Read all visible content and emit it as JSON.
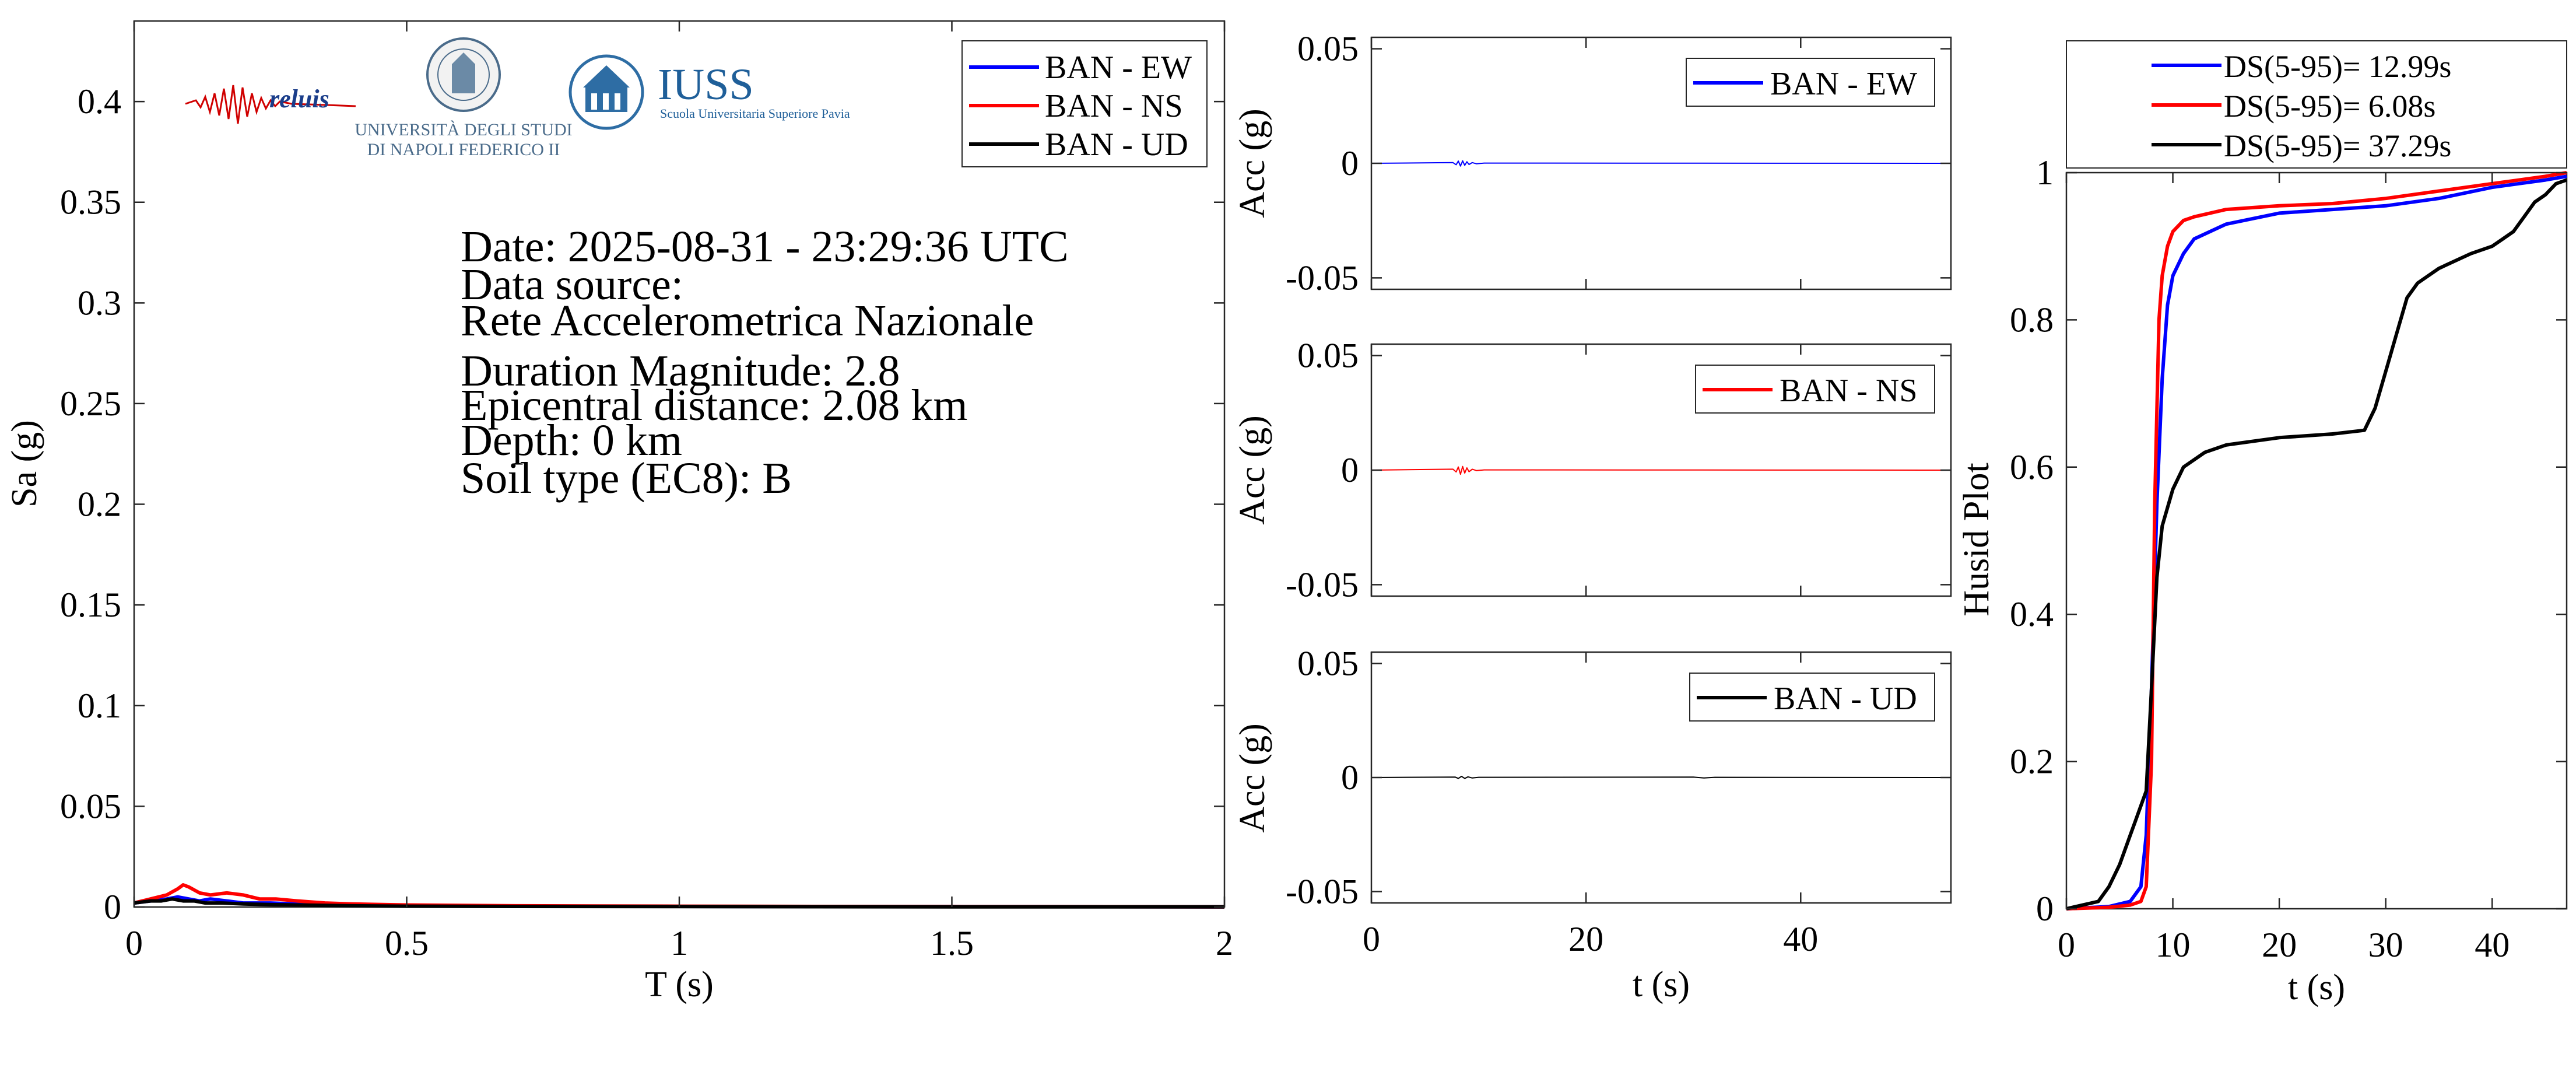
{
  "colors": {
    "ew": "#0000ff",
    "ns": "#ff0000",
    "ud": "#000000",
    "axis": "#262626"
  },
  "logos": {
    "reluis": "reluis",
    "unina_line1": "UNIVERSITÀ DEGLI STUDI",
    "unina_line2": "DI NAPOLI FEDERICO II",
    "iuss": "IUSS",
    "iuss_sub": "Scuola Universitaria Superiore Pavia",
    "unina_icon": "university-seal-icon",
    "iuss_icon": "iuss-building-icon"
  },
  "info": {
    "date": "Date: 2025-08-31 - 23:29:36 UTC",
    "source_label": "Data source:",
    "source": "Rete Accelerometrica Nazionale",
    "magnitude": "Duration Magnitude: 2.8",
    "distance": "Epicentral distance: 2.08 km",
    "depth": "Depth: 0 km",
    "soil": "Soil type (EC8): B"
  },
  "chart_data": [
    {
      "type": "line",
      "id": "spectra",
      "xlabel": "T (s)",
      "ylabel": "Sa (g)",
      "xlim": [
        0,
        2
      ],
      "ylim": [
        0,
        0.44
      ],
      "xticks": [
        0,
        0.5,
        1,
        1.5,
        2
      ],
      "xtick_labels": [
        "0",
        "0.5",
        "1",
        "1.5",
        "2"
      ],
      "yticks": [
        0,
        0.05,
        0.1,
        0.15,
        0.2,
        0.25,
        0.3,
        0.35,
        0.4
      ],
      "ytick_labels": [
        "0",
        "0.05",
        "0.1",
        "0.15",
        "0.2",
        "0.25",
        "0.3",
        "0.35",
        "0.4"
      ],
      "legend": "top-right",
      "series": [
        {
          "name": "BAN - EW",
          "color": "#0000ff",
          "x": [
            0,
            0.03,
            0.06,
            0.08,
            0.1,
            0.12,
            0.14,
            0.17,
            0.2,
            0.25,
            0.3,
            0.4,
            0.5,
            0.7,
            1.0,
            1.5,
            2.0
          ],
          "y": [
            0.002,
            0.003,
            0.004,
            0.005,
            0.004,
            0.003,
            0.004,
            0.003,
            0.002,
            0.002,
            0.0015,
            0.001,
            0.0008,
            0.0005,
            0.0003,
            0.0002,
            0.0001
          ]
        },
        {
          "name": "BAN - NS",
          "color": "#ff0000",
          "x": [
            0,
            0.03,
            0.06,
            0.08,
            0.09,
            0.1,
            0.12,
            0.14,
            0.17,
            0.2,
            0.23,
            0.26,
            0.3,
            0.35,
            0.4,
            0.5,
            0.7,
            1.0,
            1.5,
            2.0
          ],
          "y": [
            0.002,
            0.004,
            0.006,
            0.009,
            0.011,
            0.01,
            0.007,
            0.006,
            0.007,
            0.006,
            0.004,
            0.004,
            0.003,
            0.002,
            0.0015,
            0.001,
            0.0006,
            0.0004,
            0.0002,
            0.0001
          ]
        },
        {
          "name": "BAN - UD",
          "color": "#000000",
          "x": [
            0,
            0.03,
            0.05,
            0.07,
            0.09,
            0.11,
            0.13,
            0.16,
            0.2,
            0.25,
            0.3,
            0.4,
            0.5,
            0.7,
            1.0,
            1.5,
            2.0
          ],
          "y": [
            0.002,
            0.003,
            0.003,
            0.004,
            0.003,
            0.003,
            0.002,
            0.002,
            0.0015,
            0.0012,
            0.001,
            0.0006,
            0.0004,
            0.0003,
            0.0002,
            0.0001,
            0.0001
          ]
        }
      ]
    },
    {
      "type": "line",
      "id": "acc_ew",
      "xlabel": "",
      "ylabel": "Acc (g)",
      "xlim": [
        0,
        54
      ],
      "ylim": [
        -0.055,
        0.055
      ],
      "xticks": [
        0,
        20,
        40
      ],
      "yticks": [
        -0.05,
        0,
        0.05
      ],
      "ytick_labels": [
        "-0.05",
        "0",
        "0.05"
      ],
      "legend": "top-right",
      "series": [
        {
          "name": "BAN - EW",
          "color": "#0000ff",
          "x": [
            0,
            7.6,
            7.9,
            8.1,
            8.3,
            8.5,
            8.7,
            8.9,
            9.1,
            9.4,
            9.8,
            10.5,
            54
          ],
          "y": [
            0,
            0.0003,
            -0.0006,
            0.001,
            -0.0012,
            0.0011,
            -0.0009,
            0.0007,
            -0.0005,
            0.0003,
            -0.0002,
            0.0001,
            0
          ]
        }
      ]
    },
    {
      "type": "line",
      "id": "acc_ns",
      "xlabel": "",
      "ylabel": "Acc (g)",
      "xlim": [
        0,
        54
      ],
      "ylim": [
        -0.055,
        0.055
      ],
      "xticks": [
        0,
        20,
        40
      ],
      "yticks": [
        -0.05,
        0,
        0.05
      ],
      "ytick_labels": [
        "-0.05",
        "0",
        "0.05"
      ],
      "legend": "top-right",
      "series": [
        {
          "name": "BAN - NS",
          "color": "#ff0000",
          "x": [
            0,
            7.6,
            7.9,
            8.1,
            8.3,
            8.5,
            8.7,
            8.9,
            9.1,
            9.4,
            9.8,
            10.5,
            54
          ],
          "y": [
            0,
            0.0004,
            -0.0008,
            0.0014,
            -0.0018,
            0.0016,
            -0.0013,
            0.001,
            -0.0007,
            0.0004,
            -0.0002,
            0.0001,
            0
          ]
        }
      ]
    },
    {
      "type": "line",
      "id": "acc_ud",
      "xlabel": "t (s)",
      "ylabel": "Acc (g)",
      "xlim": [
        0,
        54
      ],
      "ylim": [
        -0.055,
        0.055
      ],
      "xticks": [
        0,
        20,
        40
      ],
      "xtick_labels": [
        "0",
        "20",
        "40"
      ],
      "yticks": [
        -0.05,
        0,
        0.05
      ],
      "ytick_labels": [
        "-0.05",
        "0",
        "0.05"
      ],
      "legend": "top-right",
      "series": [
        {
          "name": "BAN - UD",
          "color": "#000000",
          "x": [
            0,
            7.8,
            8.1,
            8.4,
            8.7,
            9.0,
            9.4,
            10.0,
            30.0,
            31.0,
            32.0,
            54
          ],
          "y": [
            0,
            0.0002,
            -0.0004,
            0.0005,
            -0.0004,
            0.0003,
            -0.0002,
            0.0001,
            0.0002,
            -0.0002,
            0.0001,
            0
          ]
        }
      ]
    },
    {
      "type": "line",
      "id": "husid",
      "xlabel": "t (s)",
      "ylabel": "Husid Plot",
      "xlim": [
        0,
        47
      ],
      "ylim": [
        0,
        1
      ],
      "xticks": [
        0,
        10,
        20,
        30,
        40
      ],
      "xtick_labels": [
        "0",
        "10",
        "20",
        "30",
        "40"
      ],
      "yticks": [
        0,
        0.2,
        0.4,
        0.6,
        0.8,
        1
      ],
      "ytick_labels": [
        "0",
        "0.2",
        "0.4",
        "0.6",
        "0.8",
        "1"
      ],
      "legend": "above",
      "series": [
        {
          "name": "DS(5-95)= 12.99s",
          "color": "#0000ff",
          "x": [
            0,
            4,
            6,
            7,
            7.5,
            8,
            8.5,
            9,
            9.5,
            10,
            11,
            12,
            15,
            20,
            25,
            30,
            35,
            40,
            45,
            47
          ],
          "y": [
            0,
            0.003,
            0.01,
            0.03,
            0.1,
            0.3,
            0.55,
            0.72,
            0.82,
            0.86,
            0.89,
            0.91,
            0.93,
            0.945,
            0.95,
            0.955,
            0.965,
            0.98,
            0.99,
            0.995
          ]
        },
        {
          "name": "DS(5-95)= 6.08s",
          "color": "#ff0000",
          "x": [
            0,
            4,
            6,
            7,
            7.5,
            8,
            8.3,
            8.7,
            9,
            9.5,
            10,
            11,
            12,
            15,
            20,
            25,
            30,
            35,
            40,
            45,
            47
          ],
          "y": [
            0,
            0.002,
            0.005,
            0.01,
            0.03,
            0.2,
            0.55,
            0.8,
            0.86,
            0.9,
            0.92,
            0.935,
            0.94,
            0.95,
            0.955,
            0.958,
            0.965,
            0.975,
            0.985,
            0.995,
            1.0
          ]
        },
        {
          "name": "DS(5-95)= 37.29s",
          "color": "#000000",
          "x": [
            0,
            3,
            4,
            5,
            6,
            6.5,
            7,
            7.5,
            8,
            8.5,
            9,
            10,
            11,
            13,
            15,
            20,
            25,
            28,
            29,
            30,
            31,
            32,
            33,
            35,
            38,
            40,
            41,
            42,
            43,
            44,
            45,
            46,
            47
          ],
          "y": [
            0,
            0.01,
            0.03,
            0.06,
            0.1,
            0.12,
            0.14,
            0.16,
            0.3,
            0.45,
            0.52,
            0.57,
            0.6,
            0.62,
            0.63,
            0.64,
            0.645,
            0.65,
            0.68,
            0.73,
            0.78,
            0.83,
            0.85,
            0.87,
            0.89,
            0.9,
            0.91,
            0.92,
            0.94,
            0.96,
            0.97,
            0.985,
            0.99
          ]
        }
      ]
    }
  ]
}
